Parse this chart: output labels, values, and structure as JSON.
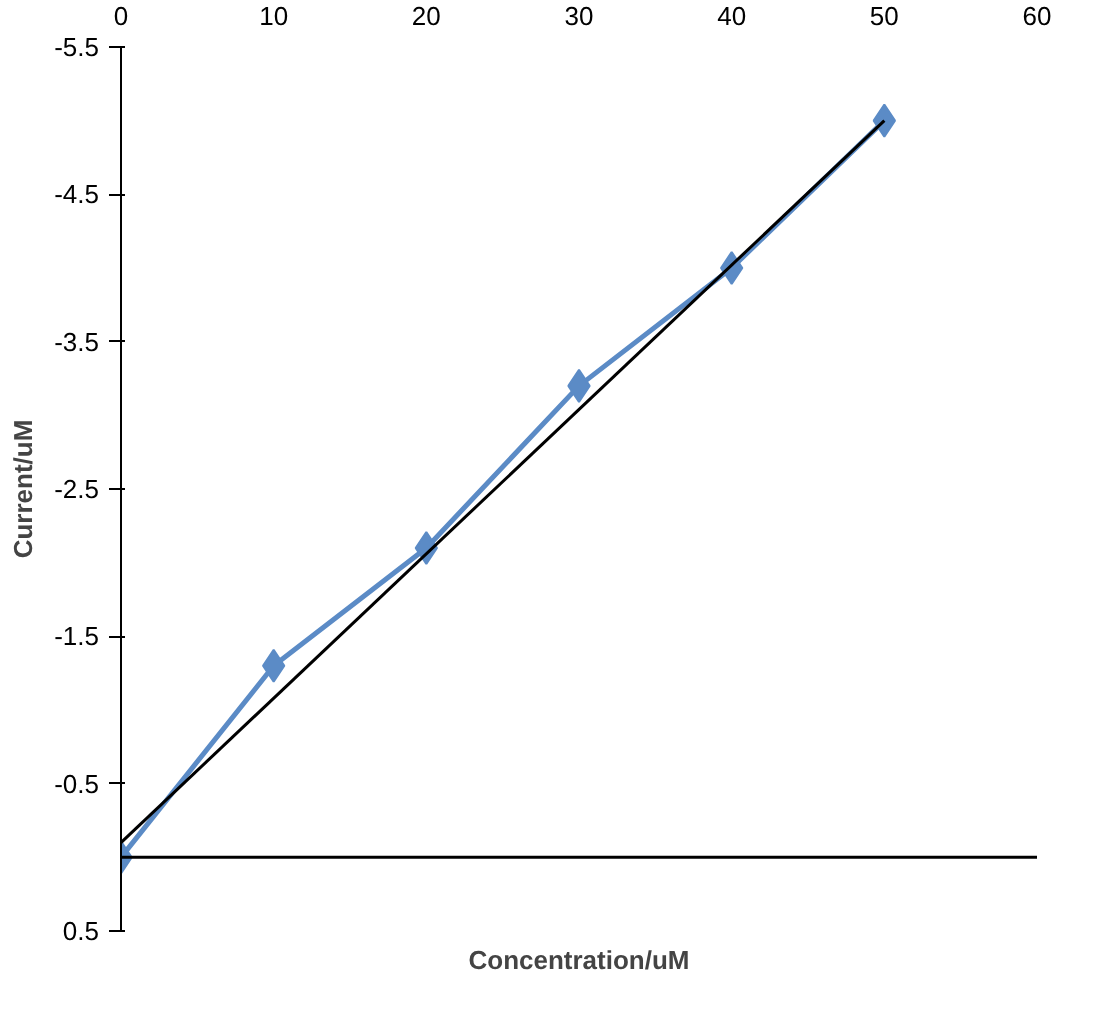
{
  "chart_data": {
    "type": "line",
    "xlabel": "Concentration/uM",
    "ylabel": "Current/uM",
    "xlim": [
      0,
      60
    ],
    "xticks": [
      0,
      10,
      20,
      30,
      40,
      50,
      60
    ],
    "ylim": [
      0.5,
      -5.5
    ],
    "yticks": [
      0.5,
      -0.5,
      -1.5,
      -2.5,
      -3.5,
      -4.5,
      -5.5
    ],
    "x": [
      0,
      10,
      20,
      30,
      40,
      50
    ],
    "series": [
      {
        "color": "#5b8bc6",
        "values": [
          0.0,
          -1.3,
          -2.1,
          -3.2,
          -4.0,
          -5.0
        ],
        "marker": "diamond"
      },
      {
        "type": "line",
        "color": "#000000",
        "x": [
          0,
          50
        ],
        "values": [
          -0.1,
          -5.0
        ],
        "marker": "none"
      }
    ],
    "ref_lines": [
      {
        "axis": "y",
        "value": 0,
        "color": "#000000"
      }
    ],
    "grid": false
  }
}
